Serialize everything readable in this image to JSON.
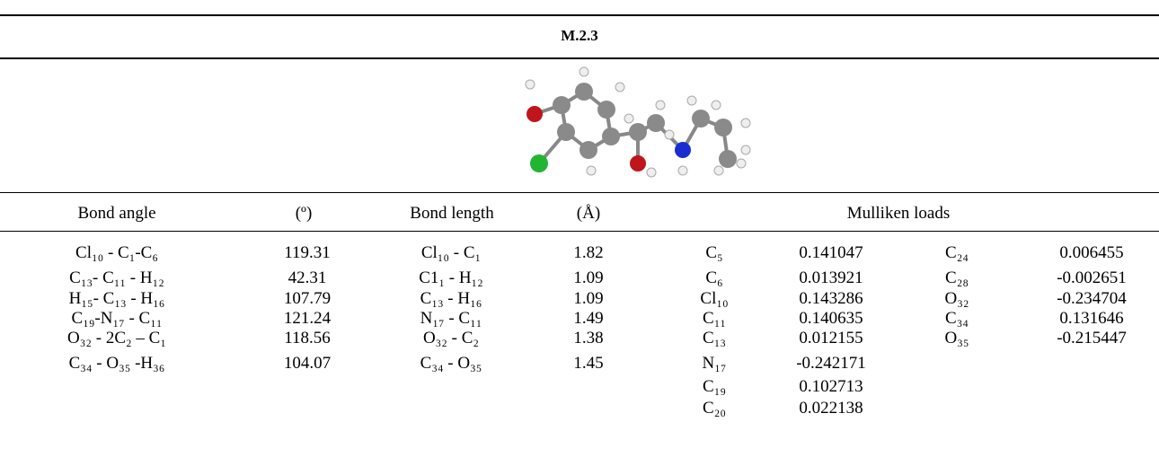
{
  "table": {
    "title": "M.2.3",
    "header": [
      "Bond angle",
      "(º)",
      "Bond length",
      "(Å)",
      "Mulliken loads"
    ],
    "rows": [
      [
        "Cl₁₀ - C₁-C₆",
        119.31,
        "Cl₁₀ - C₁",
        1.82
      ],
      [
        "C₁₃- C₁₁ -  H₁₂",
        42.31,
        "C1₁ -  H₁₂",
        1.09
      ],
      [
        "H₁₅- C₁₃ -  H₁₆",
        107.79,
        "C₁₃ - H₁₆",
        1.09
      ],
      [
        "C₁₉-N₁₇ - C₁₁",
        121.24,
        "N₁₇ -  C₁₁",
        1.49
      ],
      [
        "O₃₂ - 2C₂ – C₁",
        118.56,
        "O₃₂  - C₂",
        1.38
      ],
      [
        "C₃₄ - O₃₅ -H₃₆",
        104.07,
        "C₃₄ -  O₃₅",
        1.45
      ]
    ],
    "mulliken_a": [
      [
        "C₅",
        0.141047
      ],
      [
        "C₆",
        0.013921
      ],
      [
        "Cl₁₀",
        0.143286
      ],
      [
        "C₁₁",
        0.140635
      ],
      [
        "C₁₃",
        0.012155
      ],
      [
        "N₁₇",
        -0.242171
      ],
      [
        "C₁₉",
        0.102713
      ],
      [
        "C₂₀",
        0.022138
      ]
    ],
    "mulliken_b": [
      [
        "C₂₄",
        0.006455
      ],
      [
        "C₂₈",
        -0.002651
      ],
      [
        "O₃₂",
        -0.234704
      ],
      [
        "C₃₄",
        0.131646
      ],
      [
        "O₃₅",
        -0.215447
      ]
    ]
  }
}
